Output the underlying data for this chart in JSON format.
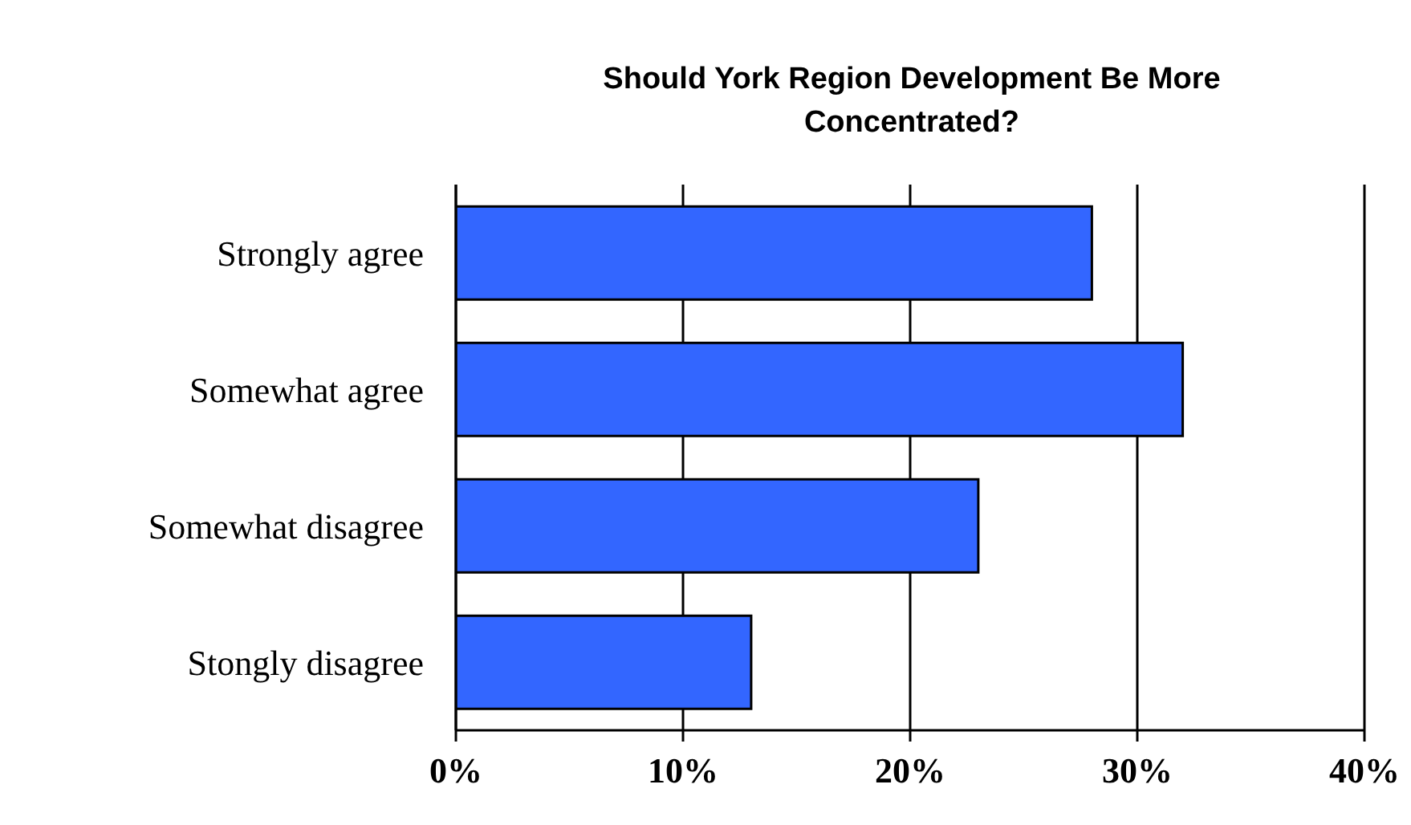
{
  "chart_data": {
    "type": "bar",
    "orientation": "horizontal",
    "title": "Should York Region Development Be More Concentrated?",
    "categories": [
      "Strongly agree",
      "Somewhat agree",
      "Somewhat disagree",
      "Stongly disagree"
    ],
    "values": [
      28,
      32,
      23,
      13
    ],
    "color": "#3366ff",
    "xlim": [
      0,
      40
    ],
    "xticks": [
      {
        "value": 0,
        "label": "0%"
      },
      {
        "value": 10,
        "label": "10%"
      },
      {
        "value": 20,
        "label": "20%"
      },
      {
        "value": 30,
        "label": "30%"
      },
      {
        "value": 40,
        "label": "40%"
      }
    ],
    "grid": "x",
    "legend": false
  }
}
